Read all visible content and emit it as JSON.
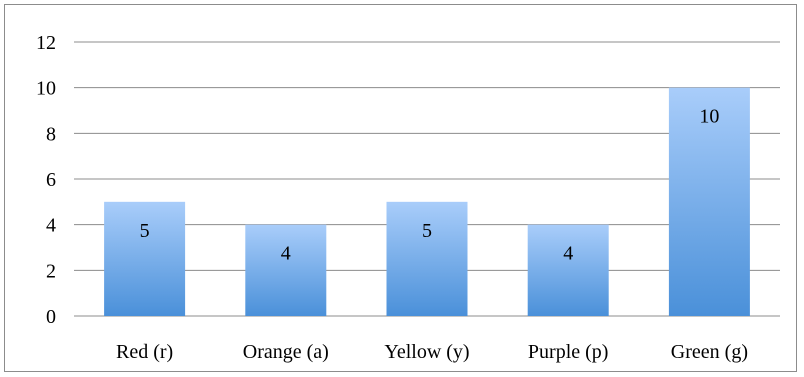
{
  "chart_data": {
    "type": "bar",
    "title": "",
    "xlabel": "",
    "ylabel": "",
    "categories": [
      "Red (r)",
      "Orange (a)",
      "Yellow (y)",
      "Purple (p)",
      "Green (g)"
    ],
    "values": [
      5,
      4,
      5,
      4,
      10
    ],
    "data_labels": [
      "5",
      "4",
      "5",
      "4",
      "10"
    ],
    "y_ticks": [
      0,
      2,
      4,
      6,
      8,
      10,
      12
    ],
    "ylim": [
      0,
      12
    ],
    "grid": true,
    "legend": "none",
    "colors": {
      "bar_top": "#a9cdfa",
      "bar_bottom": "#4a90d9",
      "gridline": "#8c8c8c",
      "border": "#8c8c8c"
    }
  }
}
